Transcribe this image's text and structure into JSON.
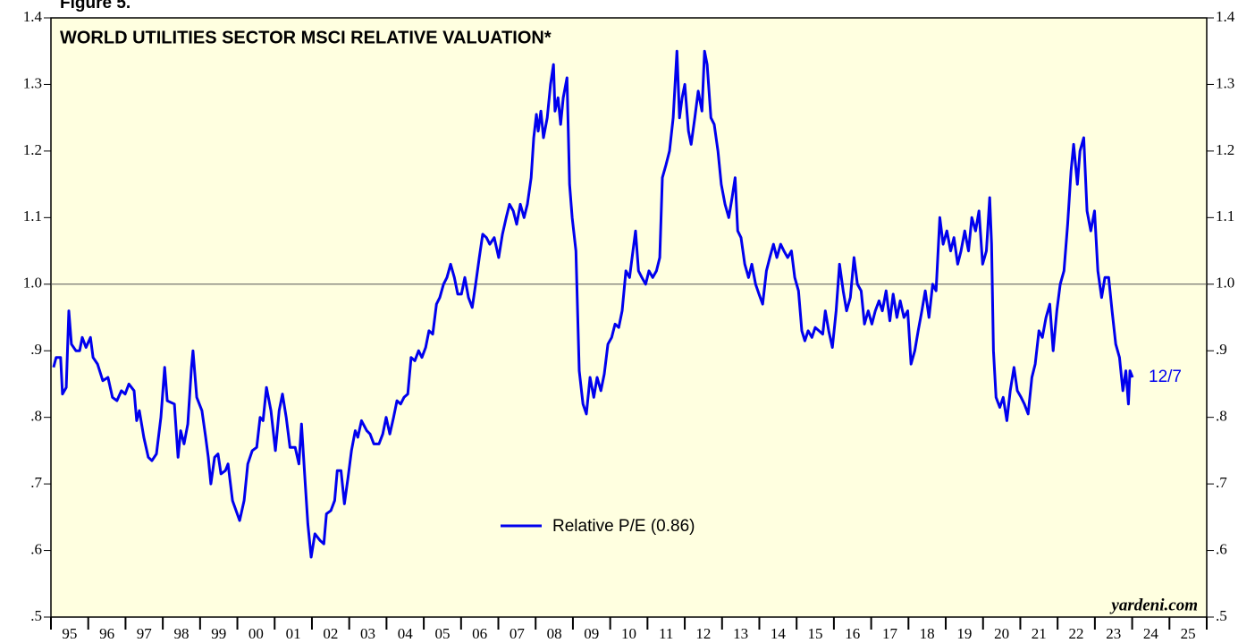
{
  "chart_data": {
    "type": "line",
    "figure_label": "Figure 5.",
    "title": "WORLD UTILITIES SECTOR MSCI RELATIVE VALUATION*",
    "annotation": "12/7",
    "source": "yardeni.com",
    "reference_line": 1.0,
    "xlim": [
      1995,
      2026
    ],
    "xticks": [
      1995,
      1996,
      1997,
      1998,
      1999,
      2000,
      2001,
      2002,
      2003,
      2004,
      2005,
      2006,
      2007,
      2008,
      2009,
      2010,
      2011,
      2012,
      2013,
      2014,
      2015,
      2016,
      2017,
      2018,
      2019,
      2020,
      2021,
      2022,
      2023,
      2024,
      2025,
      2026
    ],
    "year_labels": [
      "95",
      "96",
      "97",
      "98",
      "99",
      "00",
      "01",
      "02",
      "03",
      "04",
      "05",
      "06",
      "07",
      "08",
      "09",
      "10",
      "11",
      "12",
      "13",
      "14",
      "15",
      "16",
      "17",
      "18",
      "19",
      "20",
      "21",
      "22",
      "23",
      "24",
      "25"
    ],
    "ylim": [
      0.5,
      1.4
    ],
    "yticks": [
      {
        "value": 0.5,
        "label": ".5"
      },
      {
        "value": 0.6,
        "label": ".6"
      },
      {
        "value": 0.7,
        "label": ".7"
      },
      {
        "value": 0.8,
        "label": ".8"
      },
      {
        "value": 0.9,
        "label": ".9"
      },
      {
        "value": 1.0,
        "label": "1.0"
      },
      1.1,
      1.2,
      1.3,
      1.4
    ],
    "x": [
      1995.07,
      1995.14,
      1995.26,
      1995.31,
      1995.41,
      1995.48,
      1995.55,
      1995.67,
      1995.77,
      1995.84,
      1995.94,
      1996.06,
      1996.13,
      1996.25,
      1996.39,
      1996.53,
      1996.65,
      1996.77,
      1996.89,
      1996.99,
      1997.09,
      1997.23,
      1997.3,
      1997.37,
      1997.49,
      1997.61,
      1997.71,
      1997.83,
      1997.95,
      1998.05,
      1998.12,
      1998.31,
      1998.41,
      1998.48,
      1998.57,
      1998.67,
      1998.77,
      1998.81,
      1998.91,
      1999.05,
      1999.15,
      1999.22,
      1999.29,
      1999.39,
      1999.48,
      1999.56,
      1999.68,
      1999.75,
      1999.87,
      2000.06,
      2000.18,
      2000.28,
      2000.4,
      2000.52,
      2000.61,
      2000.69,
      2000.78,
      2000.9,
      2001.02,
      2001.12,
      2001.21,
      2001.31,
      2001.41,
      2001.55,
      2001.65,
      2001.72,
      2001.82,
      2001.89,
      2001.98,
      2002.08,
      2002.22,
      2002.32,
      2002.39,
      2002.51,
      2002.61,
      2002.68,
      2002.78,
      2002.87,
      2002.97,
      2003.06,
      2003.16,
      2003.23,
      2003.33,
      2003.47,
      2003.56,
      2003.66,
      2003.8,
      2003.9,
      2003.99,
      2004.09,
      2004.19,
      2004.28,
      2004.38,
      2004.47,
      2004.57,
      2004.66,
      2004.76,
      2004.86,
      2004.95,
      2005.05,
      2005.14,
      2005.24,
      2005.34,
      2005.43,
      2005.53,
      2005.62,
      2005.72,
      2005.82,
      2005.91,
      2006.01,
      2006.1,
      2006.2,
      2006.3,
      2006.39,
      2006.49,
      2006.58,
      2006.68,
      2006.77,
      2006.89,
      2007.01,
      2007.11,
      2007.21,
      2007.3,
      2007.4,
      2007.49,
      2007.59,
      2007.69,
      2007.78,
      2007.88,
      2007.95,
      2008.02,
      2008.07,
      2008.14,
      2008.21,
      2008.31,
      2008.4,
      2008.48,
      2008.52,
      2008.6,
      2008.67,
      2008.74,
      2008.84,
      2008.91,
      2008.98,
      2009.08,
      2009.17,
      2009.27,
      2009.36,
      2009.46,
      2009.56,
      2009.65,
      2009.75,
      2009.84,
      2009.94,
      2010.04,
      2010.13,
      2010.23,
      2010.32,
      2010.42,
      2010.52,
      2010.61,
      2010.68,
      2010.76,
      2010.85,
      2010.95,
      2011.04,
      2011.14,
      2011.24,
      2011.33,
      2011.4,
      2011.5,
      2011.59,
      2011.69,
      2011.79,
      2011.86,
      2011.93,
      2012.0,
      2012.1,
      2012.17,
      2012.27,
      2012.36,
      2012.46,
      2012.53,
      2012.6,
      2012.7,
      2012.79,
      2012.89,
      2012.98,
      2013.08,
      2013.18,
      2013.27,
      2013.35,
      2013.42,
      2013.51,
      2013.61,
      2013.71,
      2013.8,
      2013.9,
      2013.99,
      2014.09,
      2014.19,
      2014.28,
      2014.38,
      2014.47,
      2014.57,
      2014.66,
      2014.76,
      2014.86,
      2014.95,
      2015.05,
      2015.14,
      2015.22,
      2015.31,
      2015.41,
      2015.5,
      2015.6,
      2015.7,
      2015.77,
      2015.86,
      2015.96,
      2016.06,
      2016.15,
      2016.25,
      2016.34,
      2016.44,
      2016.54,
      2016.63,
      2016.73,
      2016.82,
      2016.92,
      2017.02,
      2017.11,
      2017.21,
      2017.3,
      2017.4,
      2017.5,
      2017.59,
      2017.69,
      2017.78,
      2017.88,
      2017.98,
      2018.07,
      2018.17,
      2018.26,
      2018.36,
      2018.45,
      2018.55,
      2018.65,
      2018.74,
      2018.84,
      2018.93,
      2019.03,
      2019.13,
      2019.22,
      2019.32,
      2019.41,
      2019.51,
      2019.61,
      2019.7,
      2019.8,
      2019.89,
      2019.99,
      2020.09,
      2020.18,
      2020.23,
      2020.28,
      2020.35,
      2020.45,
      2020.54,
      2020.64,
      2020.73,
      2020.83,
      2020.92,
      2021.02,
      2021.11,
      2021.21,
      2021.31,
      2021.4,
      2021.5,
      2021.59,
      2021.69,
      2021.79,
      2021.88,
      2021.98,
      2022.07,
      2022.17,
      2022.27,
      2022.36,
      2022.43,
      2022.53,
      2022.6,
      2022.7,
      2022.79,
      2022.89,
      2022.99,
      2023.08,
      2023.18,
      2023.27,
      2023.37,
      2023.46,
      2023.56,
      2023.66,
      2023.75,
      2023.83,
      2023.9,
      2023.94,
      2024.01
    ],
    "series": [
      {
        "name": "Relative P/E (0.86)",
        "color": "#0000ee",
        "values": [
          0.875,
          0.89,
          0.89,
          0.835,
          0.845,
          0.96,
          0.91,
          0.9,
          0.9,
          0.92,
          0.905,
          0.92,
          0.89,
          0.88,
          0.855,
          0.86,
          0.83,
          0.825,
          0.84,
          0.835,
          0.85,
          0.84,
          0.795,
          0.81,
          0.77,
          0.74,
          0.735,
          0.745,
          0.8,
          0.875,
          0.825,
          0.82,
          0.74,
          0.78,
          0.76,
          0.79,
          0.875,
          0.9,
          0.83,
          0.81,
          0.77,
          0.74,
          0.7,
          0.74,
          0.745,
          0.715,
          0.72,
          0.73,
          0.675,
          0.645,
          0.675,
          0.73,
          0.75,
          0.755,
          0.8,
          0.795,
          0.845,
          0.81,
          0.75,
          0.81,
          0.835,
          0.8,
          0.755,
          0.755,
          0.73,
          0.79,
          0.7,
          0.64,
          0.59,
          0.625,
          0.615,
          0.61,
          0.655,
          0.66,
          0.675,
          0.72,
          0.72,
          0.67,
          0.71,
          0.75,
          0.78,
          0.77,
          0.795,
          0.78,
          0.775,
          0.76,
          0.76,
          0.775,
          0.8,
          0.775,
          0.8,
          0.825,
          0.82,
          0.83,
          0.835,
          0.89,
          0.885,
          0.9,
          0.89,
          0.905,
          0.93,
          0.925,
          0.97,
          0.98,
          1.0,
          1.01,
          1.03,
          1.01,
          0.985,
          0.985,
          1.01,
          0.98,
          0.965,
          1.0,
          1.04,
          1.075,
          1.07,
          1.06,
          1.07,
          1.04,
          1.075,
          1.1,
          1.12,
          1.11,
          1.09,
          1.12,
          1.1,
          1.12,
          1.16,
          1.22,
          1.255,
          1.23,
          1.26,
          1.22,
          1.25,
          1.3,
          1.33,
          1.26,
          1.28,
          1.24,
          1.28,
          1.31,
          1.15,
          1.1,
          1.05,
          0.87,
          0.82,
          0.805,
          0.86,
          0.83,
          0.86,
          0.84,
          0.865,
          0.91,
          0.92,
          0.94,
          0.935,
          0.96,
          1.02,
          1.01,
          1.05,
          1.08,
          1.02,
          1.01,
          1.0,
          1.02,
          1.01,
          1.02,
          1.04,
          1.16,
          1.18,
          1.2,
          1.25,
          1.35,
          1.25,
          1.28,
          1.3,
          1.23,
          1.21,
          1.25,
          1.29,
          1.26,
          1.35,
          1.33,
          1.25,
          1.24,
          1.2,
          1.15,
          1.12,
          1.1,
          1.13,
          1.16,
          1.08,
          1.07,
          1.03,
          1.01,
          1.03,
          1.0,
          0.985,
          0.97,
          1.02,
          1.04,
          1.06,
          1.04,
          1.06,
          1.05,
          1.04,
          1.05,
          1.01,
          0.99,
          0.93,
          0.915,
          0.93,
          0.92,
          0.935,
          0.93,
          0.925,
          0.96,
          0.93,
          0.905,
          0.96,
          1.03,
          0.99,
          0.96,
          0.98,
          1.04,
          1.0,
          0.99,
          0.94,
          0.96,
          0.94,
          0.96,
          0.975,
          0.96,
          0.99,
          0.945,
          0.985,
          0.95,
          0.975,
          0.95,
          0.96,
          0.88,
          0.9,
          0.93,
          0.96,
          0.99,
          0.95,
          1.0,
          0.99,
          1.1,
          1.06,
          1.08,
          1.05,
          1.07,
          1.03,
          1.05,
          1.08,
          1.05,
          1.1,
          1.08,
          1.11,
          1.03,
          1.05,
          1.13,
          1.06,
          0.9,
          0.83,
          0.815,
          0.83,
          0.795,
          0.84,
          0.875,
          0.84,
          0.83,
          0.82,
          0.805,
          0.86,
          0.88,
          0.93,
          0.92,
          0.95,
          0.97,
          0.9,
          0.96,
          1.0,
          1.02,
          1.09,
          1.17,
          1.21,
          1.15,
          1.2,
          1.22,
          1.11,
          1.08,
          1.11,
          1.02,
          0.98,
          1.01,
          1.01,
          0.96,
          0.91,
          0.89,
          0.84,
          0.87,
          0.82,
          0.87,
          0.86
        ]
      }
    ]
  }
}
